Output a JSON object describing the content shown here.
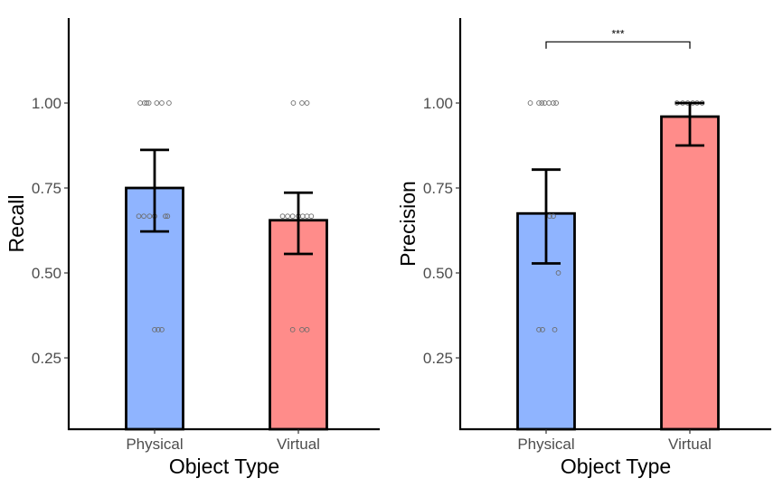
{
  "chart_data": [
    {
      "type": "bar",
      "name": "recall",
      "xlabel": "Object Type",
      "ylabel": "Recall",
      "categories": [
        "Physical",
        "Virtual"
      ],
      "colors": [
        "#8fb4ff",
        "#ff8c8a"
      ],
      "values": [
        0.75,
        0.655
      ],
      "error_low": [
        0.622,
        0.556
      ],
      "error_high": [
        0.862,
        0.736
      ],
      "ylim": [
        0.04,
        1.25
      ],
      "yticks": [
        0.25,
        0.5,
        0.75,
        1.0
      ],
      "ytick_labels": [
        "0.25",
        "0.50",
        "0.75",
        "1.00"
      ],
      "points": [
        {
          "cat": 0,
          "offset": -0.2,
          "y": 1.0
        },
        {
          "cat": 0,
          "offset": -0.14,
          "y": 1.0
        },
        {
          "cat": 0,
          "offset": -0.11,
          "y": 1.0
        },
        {
          "cat": 0,
          "offset": -0.08,
          "y": 1.0
        },
        {
          "cat": 0,
          "offset": 0.03,
          "y": 1.0
        },
        {
          "cat": 0,
          "offset": 0.1,
          "y": 1.0
        },
        {
          "cat": 0,
          "offset": 0.2,
          "y": 1.0
        },
        {
          "cat": 0,
          "offset": -0.22,
          "y": 0.667
        },
        {
          "cat": 0,
          "offset": -0.15,
          "y": 0.667
        },
        {
          "cat": 0,
          "offset": -0.07,
          "y": 0.667
        },
        {
          "cat": 0,
          "offset": 0.0,
          "y": 0.667
        },
        {
          "cat": 0,
          "offset": 0.15,
          "y": 0.667
        },
        {
          "cat": 0,
          "offset": 0.18,
          "y": 0.667
        },
        {
          "cat": 0,
          "offset": 0.0,
          "y": 0.333
        },
        {
          "cat": 0,
          "offset": 0.05,
          "y": 0.333
        },
        {
          "cat": 0,
          "offset": 0.1,
          "y": 0.333
        },
        {
          "cat": 1,
          "offset": -0.07,
          "y": 1.0
        },
        {
          "cat": 1,
          "offset": 0.05,
          "y": 1.0
        },
        {
          "cat": 1,
          "offset": 0.12,
          "y": 1.0
        },
        {
          "cat": 1,
          "offset": -0.22,
          "y": 0.667
        },
        {
          "cat": 1,
          "offset": -0.15,
          "y": 0.667
        },
        {
          "cat": 1,
          "offset": -0.08,
          "y": 0.667
        },
        {
          "cat": 1,
          "offset": 0.0,
          "y": 0.667
        },
        {
          "cat": 1,
          "offset": 0.06,
          "y": 0.667
        },
        {
          "cat": 1,
          "offset": 0.12,
          "y": 0.667
        },
        {
          "cat": 1,
          "offset": 0.18,
          "y": 0.667
        },
        {
          "cat": 1,
          "offset": -0.08,
          "y": 0.333
        },
        {
          "cat": 1,
          "offset": 0.05,
          "y": 0.333
        },
        {
          "cat": 1,
          "offset": 0.12,
          "y": 0.333
        }
      ],
      "significance": null
    },
    {
      "type": "bar",
      "name": "precision",
      "xlabel": "Object Type",
      "ylabel": "Precision",
      "categories": [
        "Physical",
        "Virtual"
      ],
      "colors": [
        "#8fb4ff",
        "#ff8c8a"
      ],
      "values": [
        0.675,
        0.96
      ],
      "error_low": [
        0.528,
        0.875
      ],
      "error_high": [
        0.804,
        1.0
      ],
      "ylim": [
        0.04,
        1.25
      ],
      "yticks": [
        0.25,
        0.5,
        0.75,
        1.0
      ],
      "ytick_labels": [
        "0.25",
        "0.50",
        "0.75",
        "1.00"
      ],
      "points": [
        {
          "cat": 0,
          "offset": -0.22,
          "y": 1.0
        },
        {
          "cat": 0,
          "offset": -0.1,
          "y": 1.0
        },
        {
          "cat": 0,
          "offset": -0.06,
          "y": 1.0
        },
        {
          "cat": 0,
          "offset": -0.02,
          "y": 1.0
        },
        {
          "cat": 0,
          "offset": 0.04,
          "y": 1.0
        },
        {
          "cat": 0,
          "offset": 0.1,
          "y": 1.0
        },
        {
          "cat": 0,
          "offset": 0.14,
          "y": 1.0
        },
        {
          "cat": 0,
          "offset": 0.05,
          "y": 0.667
        },
        {
          "cat": 0,
          "offset": 0.1,
          "y": 0.667
        },
        {
          "cat": 0,
          "offset": 0.17,
          "y": 0.5
        },
        {
          "cat": 0,
          "offset": -0.1,
          "y": 0.333
        },
        {
          "cat": 0,
          "offset": -0.05,
          "y": 0.333
        },
        {
          "cat": 0,
          "offset": 0.12,
          "y": 0.333
        },
        {
          "cat": 1,
          "offset": -0.18,
          "y": 1.0
        },
        {
          "cat": 1,
          "offset": -0.1,
          "y": 1.0
        },
        {
          "cat": 1,
          "offset": -0.03,
          "y": 1.0
        },
        {
          "cat": 1,
          "offset": 0.04,
          "y": 1.0
        },
        {
          "cat": 1,
          "offset": 0.1,
          "y": 1.0
        },
        {
          "cat": 1,
          "offset": 0.17,
          "y": 1.0
        }
      ],
      "significance": {
        "from": 0,
        "to": 1,
        "label": "***",
        "y": 1.18,
        "tick_drop": 0.02
      }
    }
  ]
}
